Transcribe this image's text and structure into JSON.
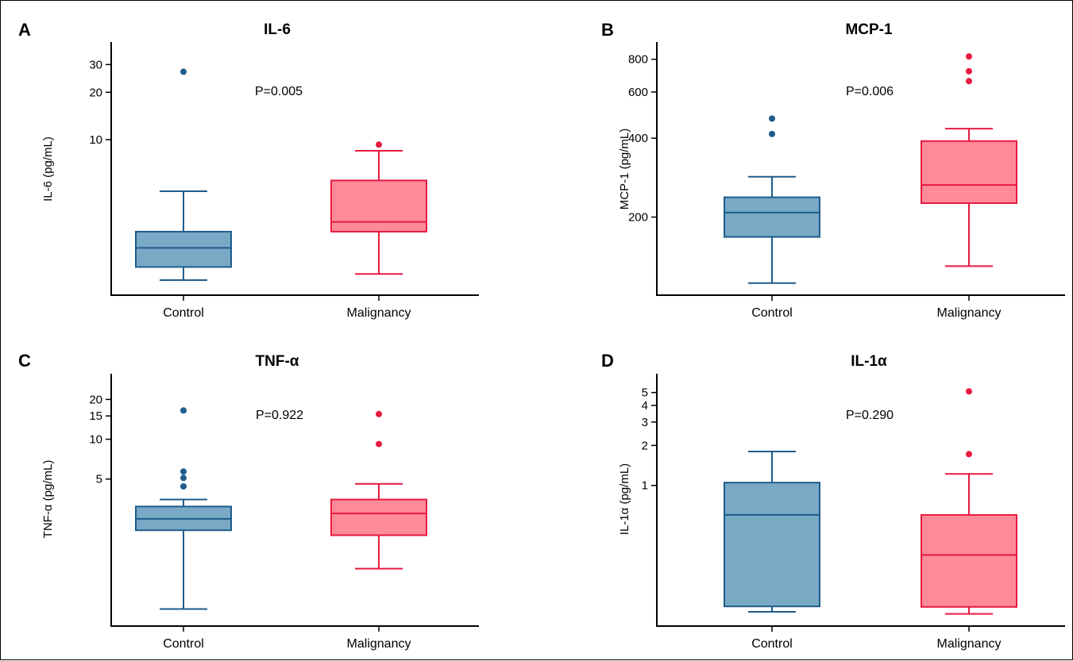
{
  "colors": {
    "control_stroke": "#1F5C8B",
    "control_fill": "#79A9C5",
    "malignancy_stroke": "#E8193F",
    "malignancy_fill": "#FF8A9A",
    "axis": "#000000"
  },
  "chart_data": [
    {
      "type": "box",
      "panel_letter": "A",
      "title": "IL-6",
      "ylabel": "IL-6 (pg/mL)",
      "yscale": "log",
      "ylim": [
        1.1,
        38
      ],
      "yticks": [
        10,
        20,
        30
      ],
      "categories": [
        "Control",
        "Malignancy"
      ],
      "annotation": "P=0.005",
      "boxes": [
        {
          "name": "Control",
          "whisker_low": 1.28,
          "q1": 1.55,
          "median": 2.05,
          "q3": 2.6,
          "whisker_high": 4.7,
          "outliers": [
            27
          ]
        },
        {
          "name": "Malignancy",
          "whisker_low": 1.4,
          "q1": 2.6,
          "median": 3.0,
          "q3": 5.5,
          "whisker_high": 8.5,
          "outliers": [
            9.3
          ]
        }
      ]
    },
    {
      "type": "box",
      "panel_letter": "B",
      "title": "MCP-1",
      "ylabel": "MCP-1 (pg/mL)",
      "yscale": "log",
      "ylim": [
        105,
        880
      ],
      "yticks": [
        200,
        400,
        600,
        800
      ],
      "categories": [
        "Control",
        "Malignancy"
      ],
      "annotation": "P=0.006",
      "boxes": [
        {
          "name": "Control",
          "whisker_low": 112,
          "q1": 168,
          "median": 208,
          "q3": 238,
          "whisker_high": 285,
          "outliers": [
            415,
            475
          ]
        },
        {
          "name": "Malignancy",
          "whisker_low": 130,
          "q1": 226,
          "median": 265,
          "q3": 390,
          "whisker_high": 435,
          "outliers": [
            660,
            720,
            820
          ]
        }
      ]
    },
    {
      "type": "box",
      "panel_letter": "C",
      "title": "TNF-α",
      "ylabel": "TNF-α (pg/mL)",
      "yscale": "log",
      "ylim": [
        0.42,
        28
      ],
      "yticks": [
        5,
        10,
        15,
        20
      ],
      "categories": [
        "Control",
        "Malignancy"
      ],
      "annotation": "P=0.922",
      "boxes": [
        {
          "name": "Control",
          "whisker_low": 0.52,
          "q1": 2.05,
          "median": 2.5,
          "q3": 3.1,
          "whisker_high": 3.5,
          "outliers": [
            4.4,
            5.1,
            5.7,
            16.5
          ]
        },
        {
          "name": "Malignancy",
          "whisker_low": 1.05,
          "q1": 1.88,
          "median": 2.75,
          "q3": 3.5,
          "whisker_high": 4.6,
          "outliers": [
            9.2,
            15.5
          ]
        }
      ]
    },
    {
      "type": "box",
      "panel_letter": "D",
      "title": "IL-1α",
      "ylabel": "IL-1α (pg/mL)",
      "yscale": "log",
      "ylim": [
        0.095,
        6.2
      ],
      "yticks": [
        1,
        2,
        3,
        4,
        5
      ],
      "categories": [
        "Control",
        "Malignancy"
      ],
      "annotation": "P=0.290",
      "boxes": [
        {
          "name": "Control",
          "whisker_low": 0.112,
          "q1": 0.123,
          "median": 0.6,
          "q3": 1.05,
          "whisker_high": 1.8,
          "outliers": []
        },
        {
          "name": "Malignancy",
          "whisker_low": 0.108,
          "q1": 0.122,
          "median": 0.3,
          "q3": 0.6,
          "whisker_high": 1.22,
          "outliers": [
            1.72,
            5.1
          ]
        }
      ]
    }
  ]
}
